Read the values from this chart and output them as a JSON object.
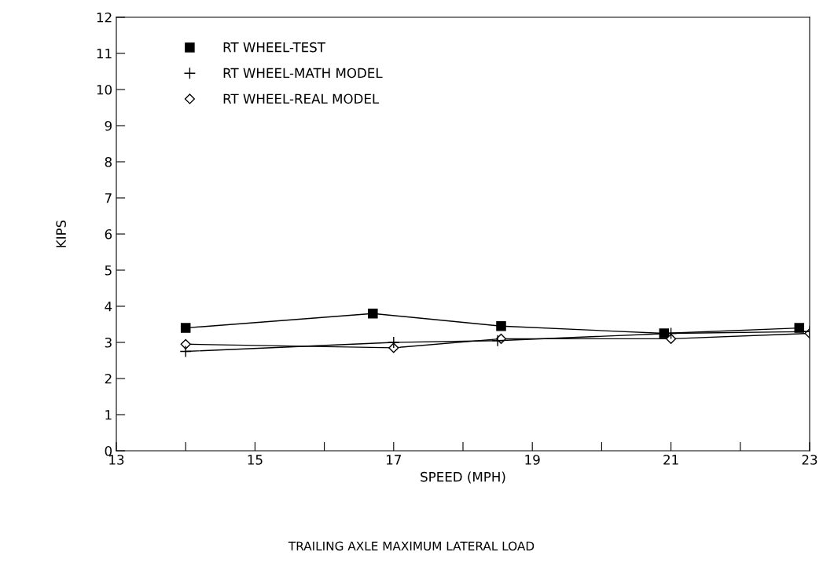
{
  "chart_data": {
    "type": "line",
    "xlabel": "SPEED (MPH)",
    "ylabel": "KIPS",
    "annotations": [
      "TRAILING AXLE MAXIMUM LATERAL LOAD"
    ],
    "xlim": [
      13,
      23
    ],
    "xticks": [
      13,
      {
        "value": 14,
        "label": null
      },
      15,
      {
        "value": 16,
        "label": null
      },
      17,
      {
        "value": 18,
        "label": null
      },
      19,
      {
        "value": 20,
        "label": null
      },
      21,
      {
        "value": 22,
        "label": null
      },
      23
    ],
    "ylim": [
      0,
      12
    ],
    "yticks": [
      0,
      1,
      2,
      3,
      4,
      5,
      6,
      7,
      8,
      9,
      10,
      11,
      12
    ],
    "grid": false,
    "legend": "top left",
    "series": [
      {
        "name": "RT WHEEL-TEST",
        "color": "#000000",
        "marker": "square",
        "x": [
          14,
          16.7,
          18.55,
          20.9,
          22.85
        ],
        "values": [
          3.4,
          3.8,
          3.45,
          3.25,
          3.4
        ]
      },
      {
        "name": "RT WHEEL-MATH MODEL",
        "color": "#000000",
        "marker": "cross",
        "x": [
          14,
          17,
          18.5,
          21,
          23
        ],
        "values": [
          2.75,
          3.0,
          3.05,
          3.25,
          3.3
        ]
      },
      {
        "name": "RT WHEEL-REAL MODEL",
        "color": "#000000",
        "marker": "diamond",
        "x": [
          14,
          17,
          18.55,
          21,
          23
        ],
        "values": [
          2.95,
          2.85,
          3.1,
          3.1,
          3.25
        ]
      }
    ]
  }
}
